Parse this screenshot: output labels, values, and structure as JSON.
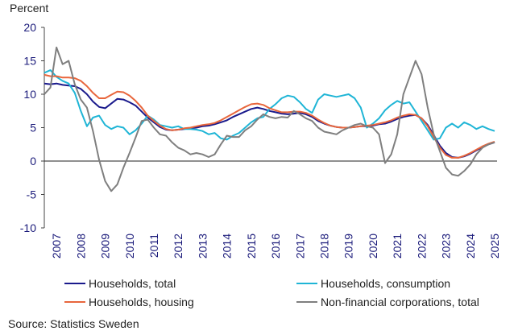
{
  "chart_data": {
    "type": "line",
    "y_label": "Percent",
    "source": "Source: Statistics Sweden",
    "x": [
      2007,
      2007.25,
      2007.5,
      2007.75,
      2008,
      2008.25,
      2008.5,
      2008.75,
      2009,
      2009.25,
      2009.5,
      2009.75,
      2010,
      2010.25,
      2010.5,
      2010.75,
      2011,
      2011.25,
      2011.5,
      2011.75,
      2012,
      2012.25,
      2012.5,
      2012.75,
      2013,
      2013.25,
      2013.5,
      2013.75,
      2014,
      2014.25,
      2014.5,
      2014.75,
      2015,
      2015.25,
      2015.5,
      2015.75,
      2016,
      2016.25,
      2016.5,
      2016.75,
      2017,
      2017.25,
      2017.5,
      2017.75,
      2018,
      2018.25,
      2018.5,
      2018.75,
      2019,
      2019.25,
      2019.5,
      2019.75,
      2020,
      2020.25,
      2020.5,
      2020.75,
      2021,
      2021.25,
      2021.5,
      2021.75,
      2022,
      2022.25,
      2022.5,
      2022.75,
      2023,
      2023.25,
      2023.5,
      2023.75,
      2024,
      2024.25,
      2024.5,
      2024.75,
      2025,
      2025.25,
      2025.5
    ],
    "series": [
      {
        "name": "Households, total",
        "color": "#1a1a8c",
        "values": [
          11.6,
          11.5,
          11.6,
          11.4,
          11.3,
          11.2,
          10.8,
          10.0,
          8.9,
          8.1,
          7.9,
          8.6,
          9.3,
          9.2,
          8.8,
          8.3,
          7.4,
          6.5,
          5.8,
          5.1,
          4.7,
          4.6,
          4.7,
          4.8,
          4.9,
          5.0,
          5.2,
          5.3,
          5.5,
          5.8,
          6.1,
          6.6,
          7.0,
          7.4,
          7.8,
          8.0,
          7.8,
          7.5,
          7.3,
          7.1,
          7.0,
          7.1,
          7.2,
          7.0,
          6.6,
          6.0,
          5.6,
          5.3,
          5.1,
          5.0,
          5.0,
          5.1,
          5.2,
          5.2,
          5.3,
          5.5,
          5.6,
          5.9,
          6.3,
          6.6,
          6.8,
          6.9,
          6.4,
          5.4,
          3.9,
          2.3,
          1.2,
          0.6,
          0.5,
          0.7,
          1.1,
          1.6,
          2.1,
          2.5,
          2.8
        ]
      },
      {
        "name": "Households, consumption",
        "color": "#1fb5d6",
        "values": [
          13.2,
          13.6,
          12.6,
          12.0,
          11.6,
          10.2,
          7.5,
          5.2,
          6.5,
          6.8,
          5.4,
          4.8,
          5.2,
          5.0,
          4.0,
          4.6,
          5.6,
          6.8,
          6.2,
          5.4,
          5.2,
          5.0,
          5.2,
          4.8,
          4.8,
          4.7,
          4.5,
          4.0,
          4.2,
          3.4,
          3.2,
          3.8,
          4.2,
          5.0,
          5.8,
          6.4,
          6.6,
          7.8,
          8.5,
          9.4,
          9.8,
          9.6,
          8.8,
          7.8,
          7.2,
          9.2,
          10.0,
          9.8,
          9.6,
          9.8,
          10.0,
          9.4,
          8.0,
          5.0,
          5.6,
          6.4,
          7.6,
          8.4,
          9.0,
          8.6,
          8.8,
          7.4,
          6.0,
          4.6,
          3.2,
          3.4,
          5.0,
          5.6,
          5.0,
          5.8,
          5.4,
          4.8,
          5.2,
          4.8,
          4.5
        ]
      },
      {
        "name": "Households, housing",
        "color": "#e8663c",
        "values": [
          12.9,
          12.7,
          12.7,
          12.5,
          12.5,
          12.4,
          12.0,
          11.2,
          10.2,
          9.4,
          9.4,
          9.9,
          10.4,
          10.3,
          9.8,
          9.0,
          8.0,
          6.8,
          6.0,
          5.3,
          4.8,
          4.6,
          4.7,
          4.9,
          5.0,
          5.2,
          5.4,
          5.5,
          5.7,
          6.1,
          6.6,
          7.1,
          7.6,
          8.1,
          8.5,
          8.6,
          8.4,
          7.9,
          7.6,
          7.3,
          7.3,
          7.4,
          7.4,
          7.2,
          6.8,
          6.2,
          5.7,
          5.3,
          5.1,
          5.0,
          5.0,
          5.1,
          5.2,
          5.3,
          5.4,
          5.6,
          5.8,
          6.1,
          6.5,
          6.8,
          7.0,
          6.9,
          6.4,
          5.2,
          3.6,
          2.0,
          0.9,
          0.5,
          0.5,
          0.8,
          1.2,
          1.7,
          2.2,
          2.6,
          2.9
        ]
      },
      {
        "name": "Non-financial corporations, total",
        "color": "#7f7f7f",
        "values": [
          10.0,
          11.0,
          17.0,
          14.5,
          15.0,
          11.5,
          9.2,
          8.0,
          4.5,
          0.2,
          -3.0,
          -4.5,
          -3.5,
          -1.0,
          1.2,
          3.5,
          6.0,
          6.2,
          5.0,
          4.0,
          3.8,
          2.8,
          2.0,
          1.6,
          1.0,
          1.2,
          1.0,
          0.6,
          1.0,
          2.5,
          3.8,
          3.6,
          3.6,
          4.6,
          5.2,
          6.2,
          7.0,
          6.6,
          6.4,
          6.6,
          6.5,
          7.5,
          7.0,
          6.4,
          6.0,
          5.0,
          4.4,
          4.2,
          4.0,
          4.6,
          5.0,
          5.4,
          5.6,
          5.2,
          5.0,
          4.0,
          -0.3,
          1.0,
          4.0,
          10.0,
          12.5,
          15.0,
          13.0,
          8.0,
          4.0,
          1.5,
          -1.0,
          -2.0,
          -2.2,
          -1.5,
          -0.5,
          1.0,
          2.0,
          2.5,
          2.8
        ]
      }
    ],
    "xlim": [
      2007,
      2025.6
    ],
    "xticks": [
      {
        "value": 2007.5,
        "label": "2007"
      },
      {
        "value": 2008.5,
        "label": "2008"
      },
      {
        "value": 2009.5,
        "label": "2009"
      },
      {
        "value": 2010.5,
        "label": "2010"
      },
      {
        "value": 2011.5,
        "label": "2011"
      },
      {
        "value": 2012.5,
        "label": "2012"
      },
      {
        "value": 2013.5,
        "label": "2013"
      },
      {
        "value": 2014.5,
        "label": "2014"
      },
      {
        "value": 2015.5,
        "label": "2015"
      },
      {
        "value": 2016.5,
        "label": "2016"
      },
      {
        "value": 2017.5,
        "label": "2017"
      },
      {
        "value": 2018.5,
        "label": "2018"
      },
      {
        "value": 2019.5,
        "label": "2019"
      },
      {
        "value": 2020.5,
        "label": "2020"
      },
      {
        "value": 2021.5,
        "label": "2021"
      },
      {
        "value": 2022.5,
        "label": "2022"
      },
      {
        "value": 2023.5,
        "label": "2023"
      },
      {
        "value": 2024.5,
        "label": "2024"
      },
      {
        "value": 2025.5,
        "label": "2025"
      }
    ],
    "ylim": [
      -10,
      20
    ],
    "yticks": [
      -10,
      -5,
      0,
      5,
      10,
      15,
      20
    ],
    "grid": false
  }
}
